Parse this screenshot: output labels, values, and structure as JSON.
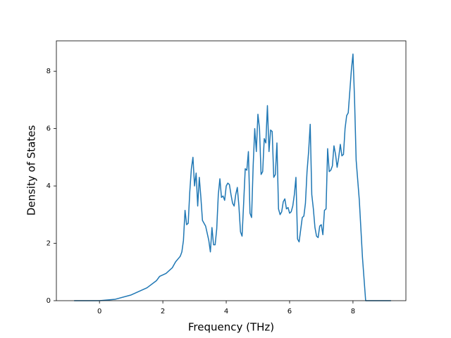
{
  "chart_data": {
    "type": "line",
    "x_label": "Frequency (THz)",
    "y_label": "Density of States",
    "x": [
      -0.8,
      0,
      0.5,
      1.0,
      1.5,
      1.8,
      1.9,
      2.1,
      2.3,
      2.4,
      2.55,
      2.6,
      2.65,
      2.7,
      2.75,
      2.8,
      2.85,
      2.9,
      2.95,
      3.0,
      3.05,
      3.1,
      3.15,
      3.2,
      3.25,
      3.35,
      3.45,
      3.5,
      3.55,
      3.6,
      3.65,
      3.7,
      3.75,
      3.8,
      3.85,
      3.9,
      3.95,
      4.0,
      4.05,
      4.1,
      4.15,
      4.2,
      4.25,
      4.3,
      4.35,
      4.4,
      4.45,
      4.5,
      4.55,
      4.6,
      4.65,
      4.7,
      4.75,
      4.8,
      4.85,
      4.9,
      4.95,
      5.0,
      5.05,
      5.1,
      5.15,
      5.2,
      5.25,
      5.3,
      5.35,
      5.4,
      5.45,
      5.5,
      5.55,
      5.6,
      5.65,
      5.7,
      5.75,
      5.8,
      5.85,
      5.9,
      5.95,
      6.0,
      6.05,
      6.1,
      6.15,
      6.2,
      6.25,
      6.3,
      6.4,
      6.45,
      6.5,
      6.55,
      6.6,
      6.65,
      6.7,
      6.75,
      6.8,
      6.85,
      6.9,
      6.95,
      7.0,
      7.05,
      7.1,
      7.15,
      7.2,
      7.25,
      7.3,
      7.35,
      7.4,
      7.45,
      7.5,
      7.55,
      7.6,
      7.65,
      7.7,
      7.75,
      7.8,
      7.85,
      7.9,
      7.95,
      8.0,
      8.05,
      8.1,
      8.2,
      8.3,
      8.4,
      9.2
    ],
    "series": [
      {
        "color": "#1f77b4",
        "values": [
          0,
          0,
          0.05,
          0.2,
          0.45,
          0.7,
          0.85,
          0.95,
          1.15,
          1.35,
          1.55,
          1.7,
          2.1,
          3.15,
          2.65,
          2.7,
          3.8,
          4.6,
          5.0,
          4.0,
          4.45,
          3.3,
          4.3,
          3.6,
          2.8,
          2.6,
          2.1,
          1.7,
          2.55,
          1.95,
          1.95,
          2.5,
          3.7,
          4.25,
          3.6,
          3.65,
          3.5,
          4.0,
          4.1,
          4.05,
          3.7,
          3.4,
          3.3,
          3.7,
          3.95,
          3.3,
          2.4,
          2.25,
          3.4,
          4.6,
          4.55,
          5.2,
          3.05,
          2.9,
          4.7,
          6.0,
          5.2,
          6.5,
          6.0,
          4.4,
          4.5,
          5.65,
          5.5,
          6.8,
          5.2,
          5.95,
          5.9,
          4.3,
          4.4,
          5.5,
          3.2,
          3.0,
          3.1,
          3.45,
          3.55,
          3.2,
          3.25,
          3.05,
          3.1,
          3.3,
          3.7,
          4.3,
          2.15,
          2.05,
          2.9,
          2.95,
          3.4,
          4.5,
          5.2,
          6.15,
          3.7,
          3.2,
          2.55,
          2.25,
          2.2,
          2.6,
          2.65,
          2.3,
          3.15,
          3.2,
          5.3,
          4.5,
          4.55,
          4.7,
          5.4,
          5.1,
          4.65,
          5.0,
          5.45,
          5.05,
          5.1,
          6.0,
          6.45,
          6.55,
          7.3,
          8.05,
          8.6,
          7.0,
          4.9,
          3.5,
          1.5,
          0,
          0
        ]
      }
    ],
    "xlim": [
      -1.36,
      9.67
    ],
    "ylim": [
      0,
      9.06
    ],
    "xticks": [
      0,
      2,
      4,
      6,
      8
    ],
    "yticks": [
      0,
      2,
      4,
      6,
      8
    ]
  }
}
